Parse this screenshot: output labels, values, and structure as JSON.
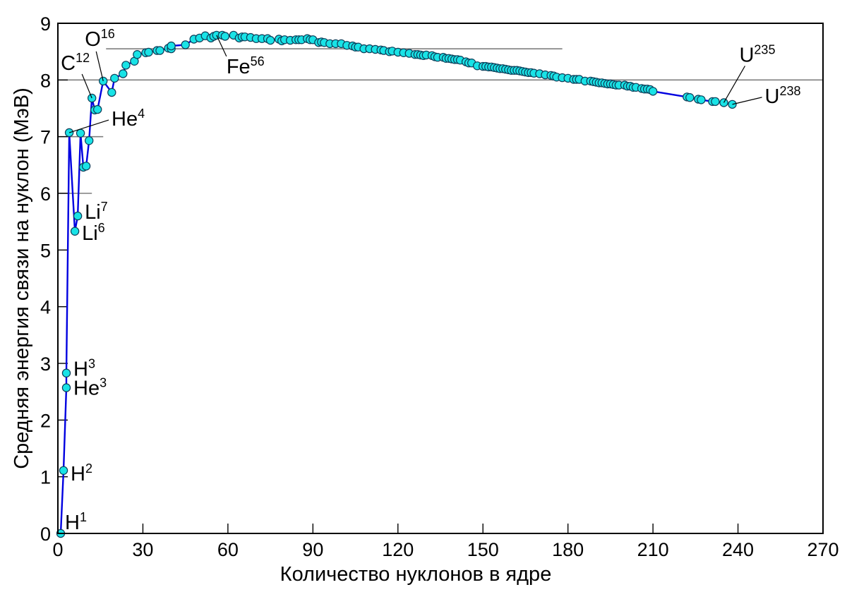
{
  "chart_data": {
    "type": "line",
    "ylabel": "Средняя энергия связи на нуклон (МэВ)",
    "xlabel": "Количество нуклонов в ядре",
    "xlim": [
      0,
      270
    ],
    "ylim": [
      0,
      9
    ],
    "xticks": [
      "0",
      "30",
      "60",
      "90",
      "120",
      "150",
      "180",
      "210",
      "240",
      "270"
    ],
    "yticks": [
      "0",
      "1",
      "2",
      "3",
      "4",
      "5",
      "6",
      "7",
      "8",
      "9"
    ],
    "colors": {
      "line": "#0000e0",
      "marker_fill": "#19e3e6",
      "marker_edge": "#0d3f5a",
      "reference": "#7f7f7f"
    },
    "reference_lines": [
      {
        "y": 8.55,
        "x_from": 17,
        "x_to": 178
      },
      {
        "y": 8.0,
        "x_from": 0,
        "x_to": 270
      },
      {
        "y": 7.0,
        "x_from": 0,
        "x_to": 16
      },
      {
        "y": 6.0,
        "x_from": 0,
        "x_to": 12
      }
    ],
    "series": [
      {
        "name": "binding-energy-per-nucleon",
        "x": [
          1,
          2,
          3,
          3,
          4,
          6,
          7,
          8,
          9,
          10,
          11,
          12,
          13,
          14,
          16,
          19,
          20,
          23,
          24,
          27,
          28,
          31,
          32,
          35,
          36,
          39,
          40,
          40,
          45,
          48,
          50,
          52,
          54,
          55,
          56,
          58,
          59,
          62,
          64,
          65,
          66,
          68,
          70,
          72,
          74,
          75,
          78,
          79,
          80,
          82,
          84,
          85,
          86,
          88,
          89,
          90,
          92,
          93,
          94,
          96,
          98,
          100,
          102,
          104,
          105,
          106,
          108,
          110,
          112,
          114,
          115,
          117,
          118,
          120,
          122,
          124,
          126,
          127,
          128,
          129,
          130,
          132,
          133,
          134,
          136,
          137,
          138,
          139,
          140,
          141,
          142,
          144,
          145,
          146,
          148,
          150,
          151,
          152,
          153,
          154,
          155,
          156,
          157,
          158,
          159,
          160,
          161,
          162,
          163,
          164,
          165,
          166,
          167,
          168,
          170,
          172,
          174,
          175,
          176,
          178,
          180,
          182,
          183,
          184,
          186,
          188,
          189,
          190,
          191,
          192,
          193,
          194,
          195,
          196,
          197,
          198,
          200,
          201,
          202,
          203,
          204,
          206,
          207,
          208,
          209,
          210,
          222,
          223,
          226,
          227,
          231,
          232,
          235,
          238
        ],
        "y": [
          0,
          1.11,
          2.57,
          2.83,
          7.07,
          5.33,
          5.6,
          7.06,
          6.46,
          6.48,
          6.93,
          7.68,
          7.47,
          7.48,
          7.98,
          7.78,
          8.03,
          8.11,
          8.26,
          8.33,
          8.45,
          8.48,
          8.49,
          8.52,
          8.52,
          8.56,
          8.55,
          8.6,
          8.62,
          8.72,
          8.74,
          8.78,
          8.74,
          8.77,
          8.79,
          8.79,
          8.77,
          8.79,
          8.74,
          8.76,
          8.76,
          8.75,
          8.73,
          8.73,
          8.73,
          8.7,
          8.72,
          8.69,
          8.71,
          8.7,
          8.71,
          8.71,
          8.71,
          8.73,
          8.71,
          8.71,
          8.66,
          8.67,
          8.66,
          8.64,
          8.64,
          8.64,
          8.61,
          8.6,
          8.58,
          8.58,
          8.55,
          8.55,
          8.54,
          8.53,
          8.52,
          8.5,
          8.51,
          8.49,
          8.48,
          8.47,
          8.45,
          8.45,
          8.44,
          8.43,
          8.44,
          8.43,
          8.41,
          8.4,
          8.4,
          8.38,
          8.38,
          8.37,
          8.36,
          8.36,
          8.35,
          8.32,
          8.3,
          8.3,
          8.25,
          8.24,
          8.24,
          8.23,
          8.23,
          8.22,
          8.21,
          8.2,
          8.2,
          8.19,
          8.18,
          8.17,
          8.17,
          8.17,
          8.16,
          8.15,
          8.14,
          8.13,
          8.13,
          8.12,
          8.11,
          8.09,
          8.08,
          8.07,
          8.05,
          8.04,
          8.03,
          8.01,
          8.01,
          8.01,
          7.98,
          7.98,
          7.97,
          7.96,
          7.95,
          7.95,
          7.94,
          7.93,
          7.93,
          7.92,
          7.91,
          7.91,
          7.91,
          7.89,
          7.89,
          7.87,
          7.87,
          7.85,
          7.84,
          7.84,
          7.83,
          7.8,
          7.7,
          7.69,
          7.66,
          7.65,
          7.62,
          7.62,
          7.6,
          7.57
        ]
      }
    ],
    "annotations": [
      {
        "base": "H",
        "sup": "1",
        "x": 1,
        "y": 0
      },
      {
        "base": "H",
        "sup": "2",
        "x": 2,
        "y": 1.11
      },
      {
        "base": "He",
        "sup": "3",
        "x": 3,
        "y": 2.57
      },
      {
        "base": "H",
        "sup": "3",
        "x": 3,
        "y": 2.83
      },
      {
        "base": "He",
        "sup": "4",
        "x": 4,
        "y": 7.07
      },
      {
        "base": "Li",
        "sup": "6",
        "x": 6,
        "y": 5.33
      },
      {
        "base": "Li",
        "sup": "7",
        "x": 7,
        "y": 5.6
      },
      {
        "base": "C",
        "sup": "12",
        "x": 12,
        "y": 7.68
      },
      {
        "base": "O",
        "sup": "16",
        "x": 16,
        "y": 7.98
      },
      {
        "base": "Fe",
        "sup": "56",
        "x": 56,
        "y": 8.79
      },
      {
        "base": "U",
        "sup": "235",
        "x": 235,
        "y": 7.6
      },
      {
        "base": "U",
        "sup": "238",
        "x": 238,
        "y": 7.57
      }
    ]
  }
}
